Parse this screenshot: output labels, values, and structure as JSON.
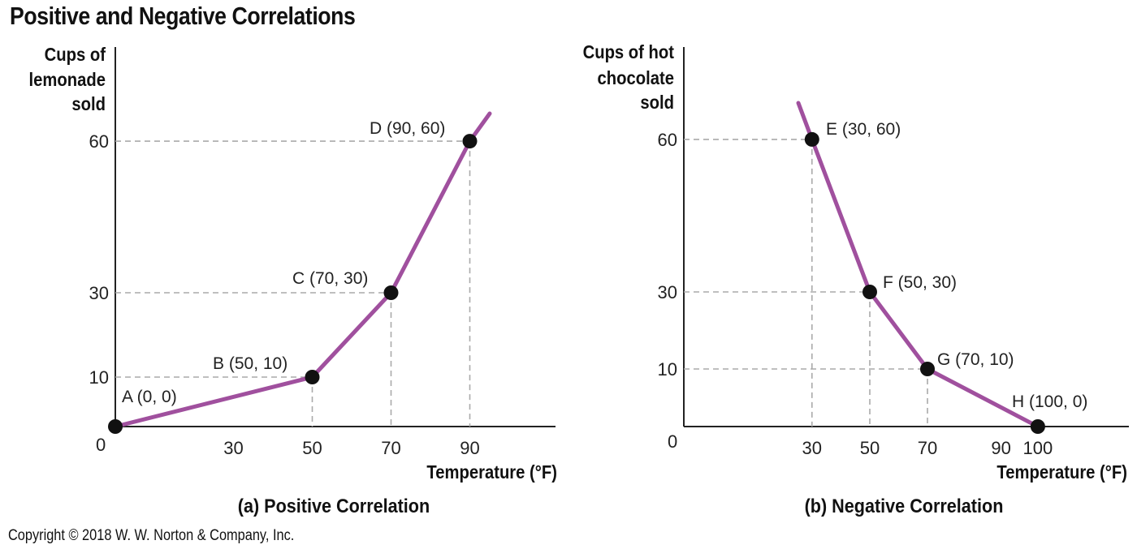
{
  "title": "Positive and Negative Correlations",
  "copyright": "Copyright © 2018 W. W. Norton & Company, Inc.",
  "colors": {
    "line": "#a0509e",
    "point": "#111111",
    "guide": "#aaaaaa",
    "axis": "#222222"
  },
  "chart_data": [
    {
      "type": "line",
      "caption": "(a) Positive Correlation",
      "xlabel": "Temperature (°F)",
      "ylabel": [
        "Cups of",
        "lemonade",
        "sold"
      ],
      "origin_label": "0",
      "xticks": [
        "30",
        "50",
        "70",
        "90"
      ],
      "yticks": [
        "10",
        "30",
        "60"
      ],
      "points": [
        {
          "label": "A (0, 0)",
          "x": 0,
          "y": 0
        },
        {
          "label": "B (50, 10)",
          "x": 50,
          "y": 10
        },
        {
          "label": "C (70, 30)",
          "x": 70,
          "y": 30
        },
        {
          "label": "D (90, 60)",
          "x": 90,
          "y": 60
        }
      ]
    },
    {
      "type": "line",
      "caption": "(b) Negative Correlation",
      "xlabel": "Temperature (°F)",
      "ylabel": [
        "Cups of hot",
        "chocolate",
        "sold"
      ],
      "origin_label": "0",
      "xticks": [
        "30",
        "50",
        "70",
        "90",
        "100"
      ],
      "yticks": [
        "10",
        "30",
        "60"
      ],
      "points": [
        {
          "label": "E (30, 60)",
          "x": 30,
          "y": 60
        },
        {
          "label": "F (50, 30)",
          "x": 50,
          "y": 30
        },
        {
          "label": "G (70, 10)",
          "x": 70,
          "y": 10
        },
        {
          "label": "H (100, 0)",
          "x": 100,
          "y": 0
        }
      ]
    }
  ]
}
